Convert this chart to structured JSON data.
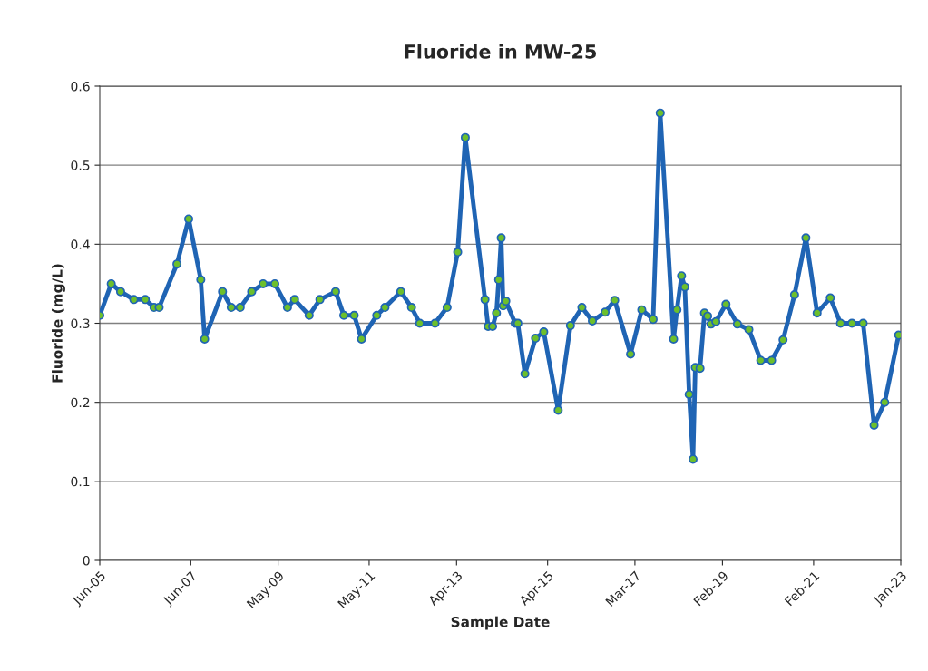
{
  "chart_data": {
    "type": "line",
    "title": "Fluoride in MW-25",
    "xlabel": "Sample Date",
    "ylabel": "Fluoride (mg/L)",
    "x": [
      "2005-06-01",
      "2005-09-01",
      "2005-11-15",
      "2006-03-01",
      "2006-06-01",
      "2006-08-10",
      "2006-09-20",
      "2007-02-10",
      "2007-05-15",
      "2007-08-20",
      "2007-09-20",
      "2008-02-10",
      "2008-04-20",
      "2008-07-01",
      "2008-10-01",
      "2009-01-01",
      "2009-04-05",
      "2009-07-15",
      "2009-09-10",
      "2010-01-05",
      "2010-04-01",
      "2010-08-05",
      "2010-10-10",
      "2011-01-01",
      "2011-03-01",
      "2011-07-01",
      "2011-09-05",
      "2012-01-10",
      "2012-04-05",
      "2012-06-10",
      "2012-10-10",
      "2013-01-15",
      "2013-04-10",
      "2013-06-10",
      "2013-11-15",
      "2013-12-10",
      "2014-01-15",
      "2014-02-15",
      "2014-03-05",
      "2014-03-25",
      "2014-04-10",
      "2014-05-01",
      "2014-07-15",
      "2014-08-05",
      "2014-10-01",
      "2014-12-25",
      "2015-03-01",
      "2015-06-25",
      "2015-10-01",
      "2016-01-01",
      "2016-03-25",
      "2016-07-05",
      "2016-09-20",
      "2017-01-25",
      "2017-04-25",
      "2017-07-25",
      "2017-09-20",
      "2018-01-05",
      "2018-02-01",
      "2018-03-10",
      "2018-04-05",
      "2018-05-10",
      "2018-06-10",
      "2018-06-28",
      "2018-08-05",
      "2018-09-10",
      "2018-10-05",
      "2018-11-01",
      "2018-12-10",
      "2019-03-01",
      "2019-06-01",
      "2019-09-01",
      "2019-12-05",
      "2020-03-01",
      "2020-06-01",
      "2020-09-01",
      "2020-12-01",
      "2021-03-01",
      "2021-06-15",
      "2021-09-05",
      "2021-12-05",
      "2022-03-05",
      "2022-06-01",
      "2022-08-25",
      "2022-12-15"
    ],
    "series": [
      {
        "color": "#1f64b4",
        "values": [
          0.31,
          0.35,
          0.34,
          0.33,
          0.33,
          0.32,
          0.32,
          0.375,
          0.432,
          0.355,
          0.28,
          0.34,
          0.32,
          0.32,
          0.34,
          0.35,
          0.35,
          0.32,
          0.33,
          0.31,
          0.33,
          0.34,
          0.31,
          0.31,
          0.28,
          0.31,
          0.32,
          0.34,
          0.32,
          0.3,
          0.3,
          0.32,
          0.39,
          0.535,
          0.33,
          0.296,
          0.296,
          0.313,
          0.355,
          0.408,
          0.322,
          0.328,
          0.3,
          0.3,
          0.236,
          0.281,
          0.289,
          0.19,
          0.297,
          0.32,
          0.303,
          0.314,
          0.329,
          0.261,
          0.317,
          0.305,
          0.566,
          0.28,
          0.317,
          0.36,
          0.346,
          0.21,
          0.128,
          0.244,
          0.243,
          0.313,
          0.309,
          0.299,
          0.302,
          0.324,
          0.299,
          0.292,
          0.253,
          0.253,
          0.279,
          0.336,
          0.408,
          0.313,
          0.332,
          0.3,
          0.3,
          0.3,
          0.171,
          0.2,
          0.285
        ]
      }
    ],
    "xlim": [
      "2005-06-01",
      "2023-01-01"
    ],
    "xticks": [
      {
        "value": "2005-06-01",
        "label": "Jun-05"
      },
      {
        "value": "2007-06-01",
        "label": "Jun-07"
      },
      {
        "value": "2009-05-01",
        "label": "May-09"
      },
      {
        "value": "2011-05-01",
        "label": "May-11"
      },
      {
        "value": "2013-04-01",
        "label": "Apr-13"
      },
      {
        "value": "2015-04-01",
        "label": "Apr-15"
      },
      {
        "value": "2017-03-01",
        "label": "Mar-17"
      },
      {
        "value": "2019-02-01",
        "label": "Feb-19"
      },
      {
        "value": "2021-02-01",
        "label": "Feb-21"
      },
      {
        "value": "2023-01-01",
        "label": "Jan-23"
      }
    ],
    "ylim": [
      0,
      0.6
    ],
    "yticks": [
      0,
      0.1,
      0.2,
      0.3,
      0.4,
      0.5,
      0.6
    ],
    "grid": "y",
    "marker": "circle",
    "line_style": "solid"
  }
}
